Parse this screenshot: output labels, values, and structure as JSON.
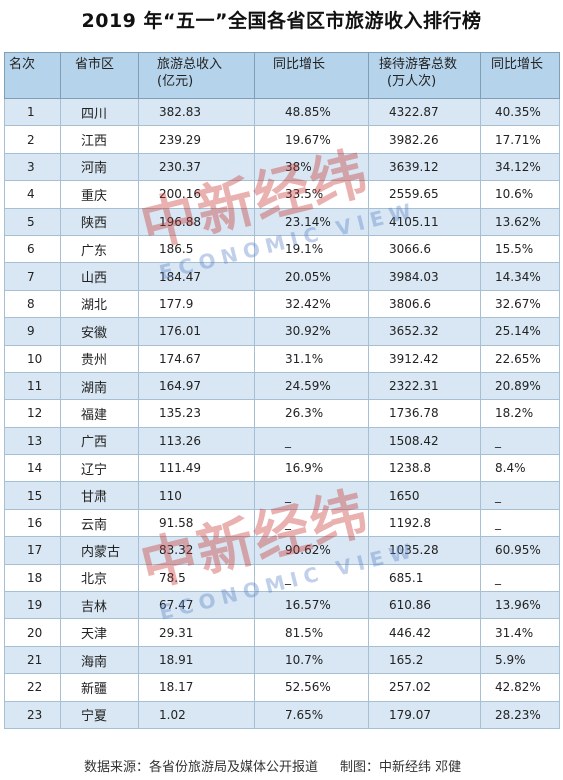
{
  "title": "2019 年“五一”全国各省区市旅游收入排行榜",
  "headers": {
    "rank": "名次",
    "province": "省市区",
    "revenue_line1": "旅游总收入",
    "revenue_line2": "(亿元)",
    "rev_growth": "同比增长",
    "visitors_line1": "接待游客总数",
    "visitors_line2": "(万人次)",
    "vis_growth": "同比增长"
  },
  "rows": [
    {
      "rank": "1",
      "province": "四川",
      "revenue": "382.83",
      "rev_growth": "48.85%",
      "visitors": "4322.87",
      "vis_growth": "40.35%"
    },
    {
      "rank": "2",
      "province": "江西",
      "revenue": "239.29",
      "rev_growth": "19.67%",
      "visitors": "3982.26",
      "vis_growth": "17.71%"
    },
    {
      "rank": "3",
      "province": "河南",
      "revenue": "230.37",
      "rev_growth": "38%",
      "visitors": "3639.12",
      "vis_growth": "34.12%"
    },
    {
      "rank": "4",
      "province": "重庆",
      "revenue": "200.16",
      "rev_growth": "33.5%",
      "visitors": "2559.65",
      "vis_growth": "10.6%"
    },
    {
      "rank": "5",
      "province": "陕西",
      "revenue": "196.88",
      "rev_growth": "23.14%",
      "visitors": "4105.11",
      "vis_growth": "13.62%"
    },
    {
      "rank": "6",
      "province": "广东",
      "revenue": "186.5",
      "rev_growth": "19.1%",
      "visitors": "3066.6",
      "vis_growth": "15.5%"
    },
    {
      "rank": "7",
      "province": "山西",
      "revenue": "184.47",
      "rev_growth": "20.05%",
      "visitors": "3984.03",
      "vis_growth": "14.34%"
    },
    {
      "rank": "8",
      "province": "湖北",
      "revenue": "177.9",
      "rev_growth": "32.42%",
      "visitors": "3806.6",
      "vis_growth": "32.67%"
    },
    {
      "rank": "9",
      "province": "安徽",
      "revenue": "176.01",
      "rev_growth": "30.92%",
      "visitors": "3652.32",
      "vis_growth": "25.14%"
    },
    {
      "rank": "10",
      "province": "贵州",
      "revenue": "174.67",
      "rev_growth": "31.1%",
      "visitors": "3912.42",
      "vis_growth": "22.65%"
    },
    {
      "rank": "11",
      "province": "湖南",
      "revenue": "164.97",
      "rev_growth": "24.59%",
      "visitors": "2322.31",
      "vis_growth": "20.89%"
    },
    {
      "rank": "12",
      "province": "福建",
      "revenue": "135.23",
      "rev_growth": "26.3%",
      "visitors": "1736.78",
      "vis_growth": "18.2%"
    },
    {
      "rank": "13",
      "province": "广西",
      "revenue": "113.26",
      "rev_growth": "_",
      "visitors": "1508.42",
      "vis_growth": "_"
    },
    {
      "rank": "14",
      "province": "辽宁",
      "revenue": "111.49",
      "rev_growth": "16.9%",
      "visitors": "1238.8",
      "vis_growth": "8.4%"
    },
    {
      "rank": "15",
      "province": "甘肃",
      "revenue": "110",
      "rev_growth": "_",
      "visitors": "1650",
      "vis_growth": "_"
    },
    {
      "rank": "16",
      "province": "云南",
      "revenue": "91.58",
      "rev_growth": "_",
      "visitors": "1192.8",
      "vis_growth": "_"
    },
    {
      "rank": "17",
      "province": "内蒙古",
      "revenue": "83.32",
      "rev_growth": "90.62%",
      "visitors": "1035.28",
      "vis_growth": "60.95%"
    },
    {
      "rank": "18",
      "province": "北京",
      "revenue": "78.5",
      "rev_growth": "_",
      "visitors": "685.1",
      "vis_growth": "_"
    },
    {
      "rank": "19",
      "province": "吉林",
      "revenue": "67.47",
      "rev_growth": "16.57%",
      "visitors": "610.86",
      "vis_growth": "13.96%"
    },
    {
      "rank": "20",
      "province": "天津",
      "revenue": "29.31",
      "rev_growth": "81.5%",
      "visitors": "446.42",
      "vis_growth": "31.4%"
    },
    {
      "rank": "21",
      "province": "海南",
      "revenue": "18.91",
      "rev_growth": "10.7%",
      "visitors": "165.2",
      "vis_growth": "5.9%"
    },
    {
      "rank": "22",
      "province": "新疆",
      "revenue": "18.17",
      "rev_growth": "52.56%",
      "visitors": "257.02",
      "vis_growth": "42.82%"
    },
    {
      "rank": "23",
      "province": "宁夏",
      "revenue": "1.02",
      "rev_growth": "7.65%",
      "visitors": "179.07",
      "vis_growth": "28.23%"
    }
  ],
  "footer": {
    "source": "数据来源：各省份旅游局及媒体公开报道",
    "credit": "制图：中新经纬 邓健"
  },
  "watermark": {
    "zh": "中新经纬",
    "en": "ECONOMIC VIEW"
  }
}
